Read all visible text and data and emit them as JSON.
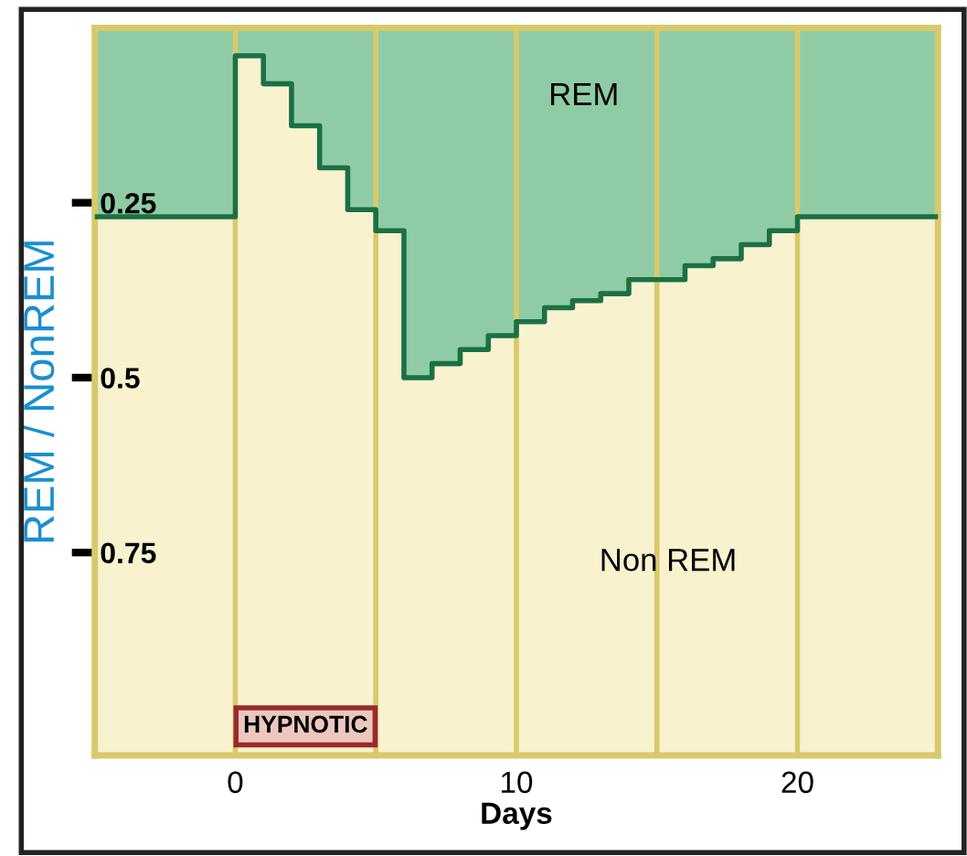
{
  "chart_data": {
    "type": "area",
    "xlabel": "Days",
    "ylabel": "REM / NonREM",
    "x": [
      -5,
      0,
      1,
      2,
      3,
      4,
      5,
      6,
      7,
      8,
      9,
      10,
      11,
      12,
      13,
      14,
      15,
      16,
      17,
      18,
      19,
      20,
      25
    ],
    "series": [
      {
        "color": "#8fcca6",
        "values": [
          0.27,
          0.04,
          0.08,
          0.14,
          0.2,
          0.26,
          0.29,
          0.5,
          0.48,
          0.46,
          0.44,
          0.42,
          0.4,
          0.39,
          0.38,
          0.36,
          0.36,
          0.34,
          0.33,
          0.31,
          0.29,
          0.27,
          0.27
        ]
      },
      {
        "type": "step",
        "color": "#1b7045",
        "values": [
          0.27,
          0.04,
          0.08,
          0.14,
          0.2,
          0.26,
          0.29,
          0.5,
          0.48,
          0.46,
          0.44,
          0.42,
          0.4,
          0.39,
          0.38,
          0.36,
          0.36,
          0.34,
          0.33,
          0.31,
          0.29,
          0.27,
          0.27
        ]
      }
    ],
    "xlim": [
      -5,
      25
    ],
    "ylim": [
      1.04,
      0
    ],
    "xticks": [
      0,
      10,
      20
    ],
    "yticks": [
      0.25,
      0.5,
      0.75
    ],
    "ref_lines": [
      {
        "axis": "x",
        "value": 0,
        "color": "#d9c96a"
      },
      {
        "axis": "x",
        "value": 5,
        "color": "#d9c96a"
      },
      {
        "axis": "x",
        "value": 10,
        "color": "#d9c96a"
      },
      {
        "axis": "x",
        "value": 15,
        "color": "#d9c96a"
      },
      {
        "axis": "x",
        "value": 20,
        "color": "#d9c96a"
      }
    ],
    "annotations": [
      "REM",
      "Non REM",
      "HYPNOTIC"
    ],
    "grid": false,
    "legend": false
  }
}
